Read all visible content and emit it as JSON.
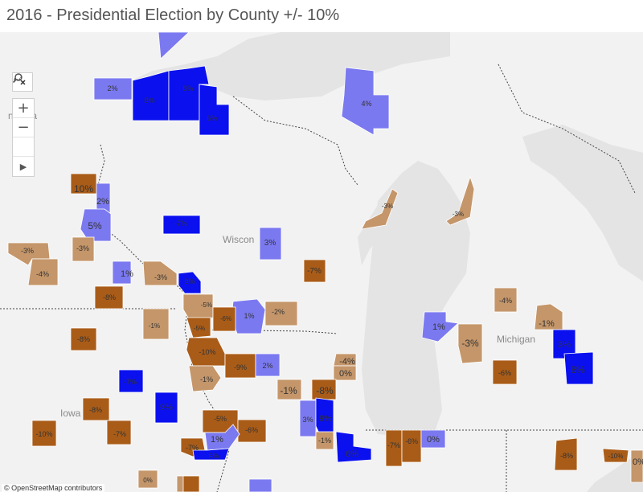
{
  "title": "2016 - Presidential Election by County +/- 10%",
  "colors": {
    "dark_blue": "#0a10ee",
    "light_blue": "#7b79f0",
    "light_brown": "#c4966a",
    "dark_brown": "#a95c18",
    "land": "#f2f2f2",
    "water": "#e4e4e4"
  },
  "toolbar": {
    "search": "search-icon",
    "zoom_in": "+",
    "zoom_out": "−",
    "select": "lasso-select-icon",
    "expand": "▶"
  },
  "state_labels": {
    "minnesota": "nesota",
    "wisconsin": "Wiscon",
    "michigan": "Michigan",
    "iowa": "Iowa"
  },
  "counties": [
    {
      "label": "2%",
      "fill": "light_blue"
    },
    {
      "label": "8%",
      "fill": "dark_blue"
    },
    {
      "label": "8%",
      "fill": "dark_blue"
    },
    {
      "label": "6%",
      "fill": "dark_blue"
    },
    {
      "label": "4%",
      "fill": "light_blue"
    },
    {
      "label": "10%",
      "fill": "dark_brown"
    },
    {
      "label": "2%",
      "fill": "light_blue"
    },
    {
      "label": "5%",
      "fill": "light_blue"
    },
    {
      "label": "-7%",
      "fill": "dark_blue"
    },
    {
      "label": "-3%",
      "fill": "light_brown"
    },
    {
      "label": "-3%",
      "fill": "light_brown"
    },
    {
      "label": "-3%",
      "fill": "light_brown"
    },
    {
      "label": "-4%",
      "fill": "light_brown"
    },
    {
      "label": "-3%",
      "fill": "light_brown"
    },
    {
      "label": "3%",
      "fill": "light_blue"
    },
    {
      "label": "-7%",
      "fill": "dark_brown"
    },
    {
      "label": "1%",
      "fill": "light_blue"
    },
    {
      "label": "-3%",
      "fill": "light_brown"
    },
    {
      "label": "9%",
      "fill": "dark_blue"
    },
    {
      "label": "-8%",
      "fill": "dark_brown"
    },
    {
      "label": "-5%",
      "fill": "light_brown"
    },
    {
      "label": "1%",
      "fill": "light_blue"
    },
    {
      "label": "-2%",
      "fill": "light_brown"
    },
    {
      "label": "-6%",
      "fill": "dark_brown"
    },
    {
      "label": "-5%",
      "fill": "dark_brown"
    },
    {
      "label": "-1%",
      "fill": "light_brown"
    },
    {
      "label": "1%",
      "fill": "light_blue"
    },
    {
      "label": "-8%",
      "fill": "dark_brown"
    },
    {
      "label": "-10%",
      "fill": "dark_brown"
    },
    {
      "label": "-9%",
      "fill": "dark_brown"
    },
    {
      "label": "2%",
      "fill": "light_blue"
    },
    {
      "label": "-4%",
      "fill": "light_brown"
    },
    {
      "label": "0%",
      "fill": "light_brown"
    },
    {
      "label": "-1%",
      "fill": "light_brown"
    },
    {
      "label": "-8%",
      "fill": "dark_brown"
    },
    {
      "label": "-7%",
      "fill": "dark_blue"
    },
    {
      "label": "-1%",
      "fill": "light_brown"
    },
    {
      "label": "-4%",
      "fill": "light_brown"
    },
    {
      "label": "-1%",
      "fill": "light_brown"
    },
    {
      "label": "3%",
      "fill": "dark_blue"
    },
    {
      "label": "-3%",
      "fill": "light_brown"
    },
    {
      "label": "8%",
      "fill": "dark_blue"
    },
    {
      "label": "-6%",
      "fill": "dark_brown"
    },
    {
      "label": "9%",
      "fill": "dark_blue"
    },
    {
      "label": "-8%",
      "fill": "dark_brown"
    },
    {
      "label": "-10%",
      "fill": "dark_brown"
    },
    {
      "label": "-7%",
      "fill": "dark_brown"
    },
    {
      "label": "-5%",
      "fill": "dark_brown"
    },
    {
      "label": "-6%",
      "fill": "dark_brown"
    },
    {
      "label": "1%",
      "fill": "light_blue"
    },
    {
      "label": "-7%",
      "fill": "dark_brown"
    },
    {
      "label": "6%",
      "fill": "dark_blue"
    },
    {
      "label": "3%",
      "fill": "light_blue"
    },
    {
      "label": "9%",
      "fill": "dark_blue"
    },
    {
      "label": "-1%",
      "fill": "light_brown"
    },
    {
      "label": "6%",
      "fill": "dark_blue"
    },
    {
      "label": "-7%",
      "fill": "dark_brown"
    },
    {
      "label": "-6%",
      "fill": "dark_brown"
    },
    {
      "label": "0%",
      "fill": "light_blue"
    },
    {
      "label": "-8%",
      "fill": "dark_brown"
    },
    {
      "label": "-10%",
      "fill": "dark_brown"
    },
    {
      "label": "0%",
      "fill": "light_brown"
    },
    {
      "label": "0%",
      "fill": "light_brown"
    },
    {
      "label": "",
      "fill": "dark_brown"
    },
    {
      "label": "",
      "fill": "light_blue"
    }
  ],
  "attribution": "© OpenStreetMap contributors"
}
